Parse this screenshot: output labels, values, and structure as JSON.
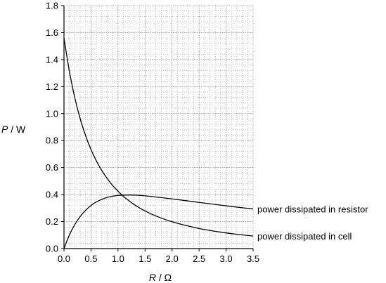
{
  "chart_data": {
    "type": "line",
    "title": "",
    "xlabel_var": "R",
    "xlabel_unit": " / Ω",
    "ylabel_var": "P",
    "ylabel_unit": " / W",
    "xlim": [
      0,
      3.5
    ],
    "ylim": [
      0,
      1.8
    ],
    "x_ticks": [
      "0.0",
      "0.5",
      "1.0",
      "1.5",
      "2.0",
      "2.5",
      "3.0",
      "3.5"
    ],
    "y_ticks": [
      "0.0",
      "0.2",
      "0.4",
      "0.6",
      "0.8",
      "1.0",
      "1.2",
      "1.4",
      "1.6",
      "1.8"
    ],
    "grid": true,
    "series": [
      {
        "name": "power dissipated in resistor",
        "x": [
          0,
          0.1,
          0.2,
          0.3,
          0.4,
          0.5,
          0.6,
          0.7,
          0.8,
          0.9,
          1.0,
          1.1,
          1.2,
          1.3,
          1.4,
          1.5,
          1.6,
          1.8,
          2.0,
          2.2,
          2.5,
          2.8,
          3.0,
          3.2,
          3.5
        ],
        "values": [
          0,
          0.101,
          0.178,
          0.238,
          0.284,
          0.319,
          0.346,
          0.365,
          0.379,
          0.388,
          0.394,
          0.396,
          0.397,
          0.396,
          0.394,
          0.391,
          0.387,
          0.378,
          0.368,
          0.358,
          0.342,
          0.327,
          0.317,
          0.307,
          0.294
        ]
      },
      {
        "name": "power dissipated in cell",
        "x": [
          0,
          0.1,
          0.2,
          0.3,
          0.4,
          0.5,
          0.6,
          0.7,
          0.8,
          0.9,
          1.0,
          1.1,
          1.2,
          1.3,
          1.4,
          1.5,
          1.6,
          1.8,
          2.0,
          2.2,
          2.5,
          2.8,
          3.0,
          3.2,
          3.5
        ],
        "values": [
          1.56,
          1.313,
          1.118,
          0.962,
          0.837,
          0.734,
          0.649,
          0.578,
          0.519,
          0.468,
          0.425,
          0.387,
          0.355,
          0.326,
          0.301,
          0.279,
          0.259,
          0.226,
          0.199,
          0.177,
          0.149,
          0.128,
          0.116,
          0.106,
          0.093
        ]
      }
    ]
  }
}
